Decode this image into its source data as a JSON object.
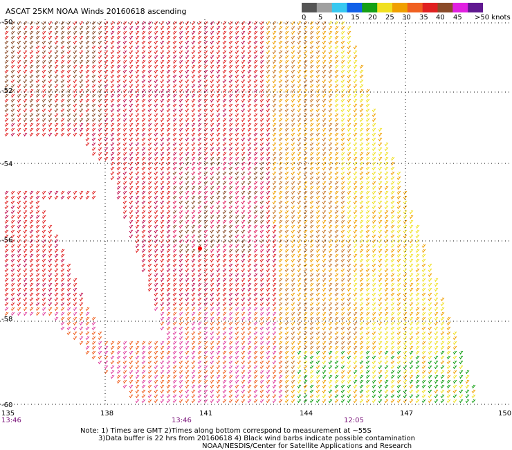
{
  "title": "ASCAT 25KM NOAA Winds 20160618 ascending",
  "legend": {
    "labels": [
      "0",
      "5",
      "10",
      "15",
      "20",
      "25",
      "30",
      "35",
      "40",
      "45",
      ">50 knots"
    ],
    "colors": [
      "#555555",
      "#a0a0a0",
      "#37c8f0",
      "#1060e8",
      "#14a014",
      "#f0e020",
      "#f0a000",
      "#f06020",
      "#e02020",
      "#8a4a28",
      "#e020e0",
      "#601890"
    ]
  },
  "map": {
    "lat_labels": [
      "-50",
      "-52",
      "-54",
      "-56",
      "-58",
      "-60"
    ],
    "lon_labels": [
      "135",
      "138",
      "141",
      "144",
      "147",
      "150"
    ],
    "time_labels": [
      "13:46",
      "13:46",
      "12:05"
    ]
  },
  "notes": {
    "line1": "Note: 1) Times are GMT 2)Times along bottom correspond to measurement at ~55S",
    "line2": "3)Data buffer is 22 hrs from 20160618 4) Black wind barbs indicate possible contamination",
    "line3": "NOAA/NESDIS/Center for Satellite Applications and Research"
  }
}
